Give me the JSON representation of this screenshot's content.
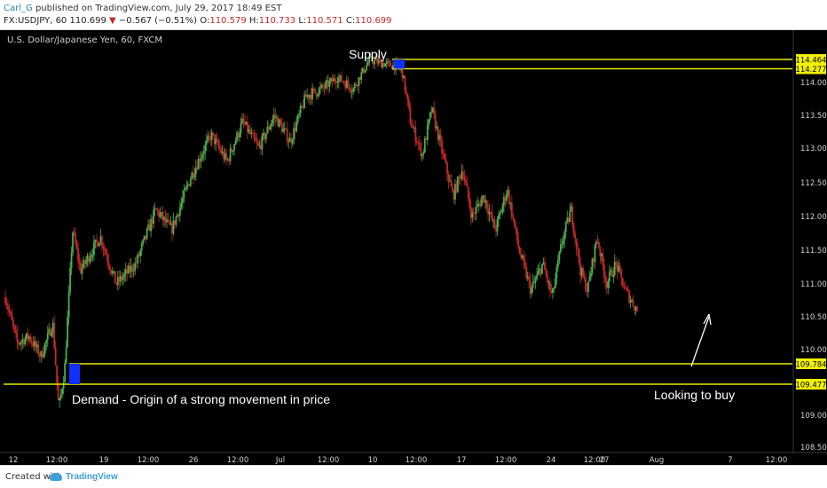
{
  "header": {
    "author": "Carl_G",
    "published": "published on TradingView.com, July 29, 2017 18:49 EST",
    "symbol": "FX:USDJPY, 60",
    "last": "110.699",
    "change_arrow": "▼",
    "change": "−0.567 (−0.51%)",
    "o_label": "O:",
    "o_value": "110.579",
    "h_label": "H:",
    "h_value": "110.733",
    "l_label": "L:",
    "l_value": "110.571",
    "c_label": "C:",
    "c_value": "110.699"
  },
  "footer": {
    "created_with": "Created with",
    "brand": "TradingView"
  },
  "chart_data": {
    "type": "candlestick",
    "title": "U.S. Dollar/Japanese Yen, 60, FXCM",
    "ylim": [
      108.5,
      114.75
    ],
    "y_ticks": [
      "114.000",
      "113.500",
      "113.000",
      "112.500",
      "112.000",
      "111.500",
      "111.000",
      "110.500",
      "110.000",
      "109.000",
      "108.500"
    ],
    "x_ticks": [
      "12",
      "12:00",
      "19",
      "12:00",
      "26",
      "12:00",
      "Jul",
      "12:00",
      "10",
      "12:00",
      "17",
      "12:00",
      "24",
      "12:00",
      "27",
      "Aug",
      "7",
      "12:00"
    ],
    "price_labels": [
      "114.464",
      "114.277",
      "109.784",
      "109.477"
    ],
    "zones": [
      {
        "name": "Supply",
        "top": 114.464,
        "bottom": 114.277
      },
      {
        "name": "Demand - Origin of a strong movement in price",
        "top": 109.784,
        "bottom": 109.477
      }
    ],
    "annotations": [
      "Supply",
      "Demand - Origin of a strong movement in price",
      "Looking to buy"
    ],
    "price_path": [
      {
        "t": 0.0,
        "p": 110.8
      },
      {
        "t": 0.03,
        "p": 110.1
      },
      {
        "t": 0.06,
        "p": 110.2
      },
      {
        "t": 0.09,
        "p": 109.9
      },
      {
        "t": 0.12,
        "p": 110.4
      },
      {
        "t": 0.135,
        "p": 109.1
      },
      {
        "t": 0.15,
        "p": 109.7
      },
      {
        "t": 0.17,
        "p": 111.8
      },
      {
        "t": 0.19,
        "p": 111.2
      },
      {
        "t": 0.24,
        "p": 111.7
      },
      {
        "t": 0.28,
        "p": 111.0
      },
      {
        "t": 0.33,
        "p": 111.3
      },
      {
        "t": 0.38,
        "p": 112.1
      },
      {
        "t": 0.42,
        "p": 111.8
      },
      {
        "t": 0.47,
        "p": 112.6
      },
      {
        "t": 0.52,
        "p": 113.2
      },
      {
        "t": 0.56,
        "p": 112.8
      },
      {
        "t": 0.6,
        "p": 113.4
      },
      {
        "t": 0.64,
        "p": 113.0
      },
      {
        "t": 0.68,
        "p": 113.5
      },
      {
        "t": 0.72,
        "p": 113.1
      },
      {
        "t": 0.76,
        "p": 113.8
      },
      {
        "t": 0.8,
        "p": 113.9
      },
      {
        "t": 0.84,
        "p": 114.1
      },
      {
        "t": 0.88,
        "p": 113.9
      },
      {
        "t": 0.92,
        "p": 114.45
      },
      {
        "t": 1.0,
        "p": 114.3
      }
    ],
    "price_path2": [
      {
        "t": 0.0,
        "p": 114.3
      },
      {
        "t": 0.04,
        "p": 113.4
      },
      {
        "t": 0.09,
        "p": 112.9
      },
      {
        "t": 0.13,
        "p": 113.6
      },
      {
        "t": 0.17,
        "p": 113.0
      },
      {
        "t": 0.22,
        "p": 112.3
      },
      {
        "t": 0.26,
        "p": 112.7
      },
      {
        "t": 0.3,
        "p": 112.0
      },
      {
        "t": 0.35,
        "p": 112.3
      },
      {
        "t": 0.4,
        "p": 111.8
      },
      {
        "t": 0.45,
        "p": 112.4
      },
      {
        "t": 0.5,
        "p": 111.5
      },
      {
        "t": 0.55,
        "p": 110.9
      },
      {
        "t": 0.6,
        "p": 111.3
      },
      {
        "t": 0.64,
        "p": 110.8
      },
      {
        "t": 0.68,
        "p": 111.6
      },
      {
        "t": 0.72,
        "p": 112.1
      },
      {
        "t": 0.76,
        "p": 111.2
      },
      {
        "t": 0.79,
        "p": 110.9
      },
      {
        "t": 0.83,
        "p": 111.7
      },
      {
        "t": 0.87,
        "p": 111.0
      },
      {
        "t": 0.91,
        "p": 111.3
      },
      {
        "t": 0.95,
        "p": 110.9
      },
      {
        "t": 1.0,
        "p": 110.6
      }
    ],
    "colors": {
      "bg": "#000000",
      "up": "#4caf50",
      "down": "#c62828",
      "zone_line": "#e8e800",
      "zone_fill": "#1030ff",
      "label_bg": "#f2f200",
      "axis_text": "#cfcfcf",
      "annotation_text": "#ffffff"
    }
  }
}
